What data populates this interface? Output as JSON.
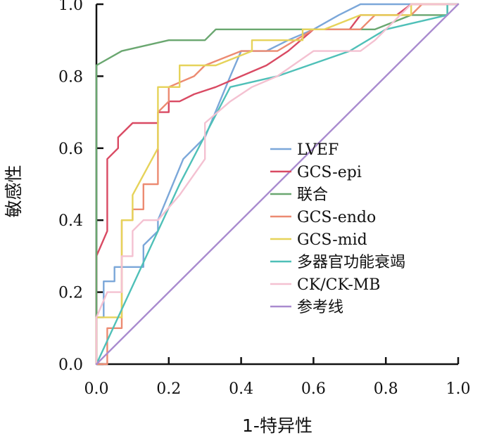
{
  "chart_data": {
    "type": "line",
    "title": "",
    "xlabel": "1-特异性",
    "ylabel": "敏感性",
    "xlim": [
      0,
      1
    ],
    "ylim": [
      0,
      1
    ],
    "x_ticks": [
      "0.0",
      "0.2",
      "0.4",
      "0.6",
      "0.8",
      "1.0"
    ],
    "y_ticks": [
      "0.0",
      "0.2",
      "0.4",
      "0.6",
      "0.8",
      "1.0"
    ],
    "legend_position": "center-right",
    "series": [
      {
        "name": "LVEF",
        "color": "#7ba7d9",
        "points": [
          [
            0,
            0
          ],
          [
            0,
            0.13
          ],
          [
            0.02,
            0.13
          ],
          [
            0.02,
            0.23
          ],
          [
            0.05,
            0.23
          ],
          [
            0.05,
            0.27
          ],
          [
            0.13,
            0.27
          ],
          [
            0.13,
            0.33
          ],
          [
            0.17,
            0.37
          ],
          [
            0.17,
            0.4
          ],
          [
            0.24,
            0.57
          ],
          [
            0.3,
            0.63
          ],
          [
            0.37,
            0.8
          ],
          [
            0.4,
            0.87
          ],
          [
            0.47,
            0.87
          ],
          [
            0.53,
            0.9
          ],
          [
            0.6,
            0.93
          ],
          [
            0.67,
            0.97
          ],
          [
            0.73,
            1.0
          ],
          [
            1.0,
            1.0
          ]
        ]
      },
      {
        "name": "GCS-epi",
        "color": "#d94a63",
        "points": [
          [
            0,
            0
          ],
          [
            0,
            0.3
          ],
          [
            0.03,
            0.37
          ],
          [
            0.03,
            0.57
          ],
          [
            0.06,
            0.6
          ],
          [
            0.06,
            0.63
          ],
          [
            0.1,
            0.67
          ],
          [
            0.17,
            0.67
          ],
          [
            0.17,
            0.7
          ],
          [
            0.2,
            0.7
          ],
          [
            0.2,
            0.73
          ],
          [
            0.23,
            0.73
          ],
          [
            0.27,
            0.75
          ],
          [
            0.33,
            0.77
          ],
          [
            0.4,
            0.8
          ],
          [
            0.47,
            0.83
          ],
          [
            0.53,
            0.87
          ],
          [
            0.6,
            0.93
          ],
          [
            0.7,
            0.93
          ],
          [
            0.73,
            0.97
          ],
          [
            0.83,
            0.97
          ],
          [
            0.87,
            1.0
          ],
          [
            1.0,
            1.0
          ]
        ]
      },
      {
        "name": "联合",
        "color": "#6aa770",
        "points": [
          [
            0,
            0
          ],
          [
            0,
            0.83
          ],
          [
            0.07,
            0.87
          ],
          [
            0.2,
            0.9
          ],
          [
            0.3,
            0.9
          ],
          [
            0.33,
            0.93
          ],
          [
            0.77,
            0.93
          ],
          [
            0.87,
            0.97
          ],
          [
            0.97,
            0.97
          ],
          [
            0.97,
            1.0
          ],
          [
            1.0,
            1.0
          ]
        ]
      },
      {
        "name": "GCS-endo",
        "color": "#ec8b72",
        "points": [
          [
            0,
            0
          ],
          [
            0.03,
            0
          ],
          [
            0.03,
            0.1
          ],
          [
            0.07,
            0.1
          ],
          [
            0.07,
            0.4
          ],
          [
            0.1,
            0.4
          ],
          [
            0.1,
            0.43
          ],
          [
            0.13,
            0.43
          ],
          [
            0.13,
            0.5
          ],
          [
            0.17,
            0.5
          ],
          [
            0.17,
            0.7
          ],
          [
            0.2,
            0.73
          ],
          [
            0.2,
            0.77
          ],
          [
            0.27,
            0.8
          ],
          [
            0.3,
            0.83
          ],
          [
            0.4,
            0.87
          ],
          [
            0.5,
            0.87
          ],
          [
            0.6,
            0.93
          ],
          [
            0.73,
            0.93
          ],
          [
            0.77,
            0.97
          ],
          [
            0.87,
            0.97
          ],
          [
            0.9,
            1.0
          ],
          [
            1.0,
            1.0
          ]
        ]
      },
      {
        "name": "GCS-mid",
        "color": "#e6d35a",
        "points": [
          [
            0,
            0
          ],
          [
            0,
            0.13
          ],
          [
            0.07,
            0.13
          ],
          [
            0.07,
            0.4
          ],
          [
            0.1,
            0.4
          ],
          [
            0.1,
            0.47
          ],
          [
            0.17,
            0.6
          ],
          [
            0.17,
            0.77
          ],
          [
            0.23,
            0.77
          ],
          [
            0.23,
            0.83
          ],
          [
            0.33,
            0.83
          ],
          [
            0.43,
            0.87
          ],
          [
            0.43,
            0.9
          ],
          [
            0.57,
            0.9
          ],
          [
            0.57,
            0.93
          ],
          [
            0.63,
            0.93
          ],
          [
            0.73,
            0.97
          ],
          [
            0.87,
            0.97
          ],
          [
            0.87,
            1.0
          ],
          [
            1.0,
            1.0
          ]
        ]
      },
      {
        "name": "多器官功能衰竭",
        "color": "#4fc0b8",
        "points": [
          [
            0,
            0
          ],
          [
            0.23,
            0.5
          ],
          [
            0.37,
            0.77
          ],
          [
            0.5,
            0.8
          ],
          [
            0.7,
            0.87
          ],
          [
            0.8,
            0.93
          ],
          [
            0.97,
            0.97
          ],
          [
            0.97,
            1.0
          ],
          [
            1.0,
            1.0
          ]
        ]
      },
      {
        "name": "CK/CK-MB",
        "color": "#f4c1d1",
        "points": [
          [
            0,
            0
          ],
          [
            0,
            0.13
          ],
          [
            0.03,
            0.2
          ],
          [
            0.07,
            0.2
          ],
          [
            0.07,
            0.3
          ],
          [
            0.1,
            0.3
          ],
          [
            0.1,
            0.37
          ],
          [
            0.13,
            0.4
          ],
          [
            0.17,
            0.4
          ],
          [
            0.23,
            0.47
          ],
          [
            0.3,
            0.57
          ],
          [
            0.3,
            0.67
          ],
          [
            0.37,
            0.73
          ],
          [
            0.43,
            0.77
          ],
          [
            0.5,
            0.8
          ],
          [
            0.6,
            0.87
          ],
          [
            0.73,
            0.87
          ],
          [
            0.77,
            0.9
          ],
          [
            0.8,
            0.93
          ],
          [
            0.87,
            1.0
          ],
          [
            1.0,
            1.0
          ]
        ]
      },
      {
        "name": "参考线",
        "color": "#a98bcf",
        "points": [
          [
            0,
            0
          ],
          [
            1,
            1
          ]
        ]
      }
    ]
  }
}
